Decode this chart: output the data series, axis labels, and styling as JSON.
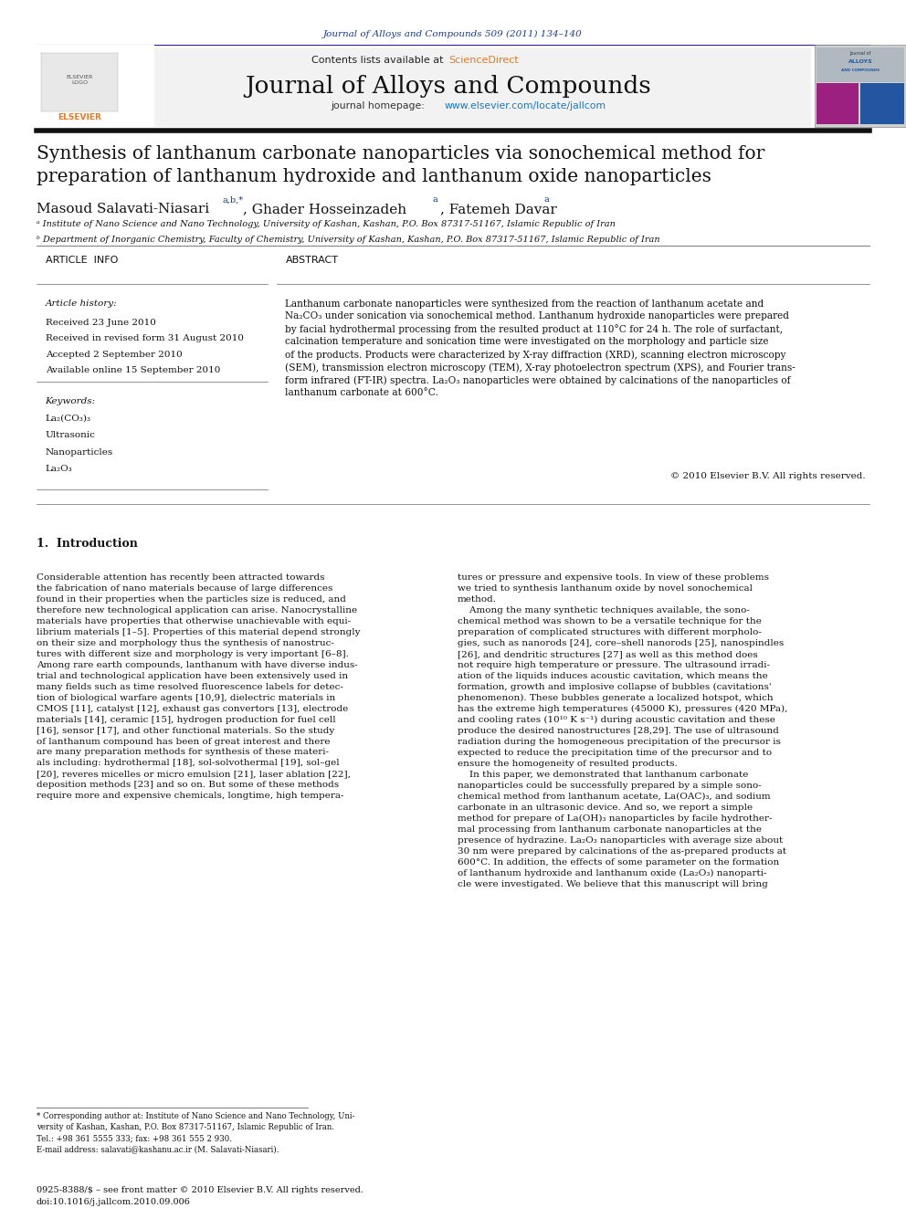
{
  "page_width": 9.92,
  "page_height": 13.23,
  "bg_color": "#ffffff",
  "journal_citation": "Journal of Alloys and Compounds 509 (2011) 134–140",
  "journal_citation_color": "#1a3a8c",
  "contents_text": "Contents lists available at ",
  "sciencedirect_text": "ScienceDirect",
  "sciencedirect_color": "#e87722",
  "journal_name": "Journal of Alloys and Compounds",
  "journal_homepage_prefix": "journal homepage: ",
  "journal_url": "www.elsevier.com/locate/jallcom",
  "journal_url_color": "#1a78c2",
  "paper_title": "Synthesis of lanthanum carbonate nanoparticles via sonochemical method for\npreparation of lanthanum hydroxide and lanthanum oxide nanoparticles",
  "affiliation_a": "ᵃ Institute of Nano Science and Nano Technology, University of Kashan, Kashan, P.O. Box 87317-51167, Islamic Republic of Iran",
  "affiliation_b": "ᵇ Department of Inorganic Chemistry, Faculty of Chemistry, University of Kashan, Kashan, P.O. Box 87317-51167, Islamic Republic of Iran",
  "article_info_title": "ARTICLE  INFO",
  "article_history_title": "Article history:",
  "received": "Received 23 June 2010",
  "revised": "Received in revised form 31 August 2010",
  "accepted": "Accepted 2 September 2010",
  "available": "Available online 15 September 2010",
  "keywords_title": "Keywords:",
  "keyword1": "La₂(CO₃)₃",
  "keyword2": "Ultrasonic",
  "keyword3": "Nanoparticles",
  "keyword4": "La₂O₃",
  "abstract_title": "ABSTRACT",
  "abstract_text": "Lanthanum carbonate nanoparticles were synthesized from the reaction of lanthanum acetate and\nNa₂CO₃ under sonication via sonochemical method. Lanthanum hydroxide nanoparticles were prepared\nby facial hydrothermal processing from the resulted product at 110°C for 24 h. The role of surfactant,\ncalcination temperature and sonication time were investigated on the morphology and particle size\nof the products. Products were characterized by X-ray diffraction (XRD), scanning electron microscopy\n(SEM), transmission electron microscopy (TEM), X-ray photoelectron spectrum (XPS), and Fourier trans-\nform infrared (FT-IR) spectra. La₂O₃ nanoparticles were obtained by calcinations of the nanoparticles of\nlanthanum carbonate at 600°C.",
  "copyright": "© 2010 Elsevier B.V. All rights reserved.",
  "intro_title": "1.  Introduction",
  "intro_col1": "Considerable attention has recently been attracted towards\nthe fabrication of nano materials because of large differences\nfound in their properties when the particles size is reduced, and\ntherefore new technological application can arise. Nanocrystalline\nmaterials have properties that otherwise unachievable with equi-\nlibrium materials [1–5]. Properties of this material depend strongly\non their size and morphology thus the synthesis of nanostruc-\ntures with different size and morphology is very important [6–8].\nAmong rare earth compounds, lanthanum with have diverse indus-\ntrial and technological application have been extensively used in\nmany fields such as time resolved fluorescence labels for detec-\ntion of biological warfare agents [10,9], dielectric materials in\nCMOS [11], catalyst [12], exhaust gas convertors [13], electrode\nmaterials [14], ceramic [15], hydrogen production for fuel cell\n[16], sensor [17], and other functional materials. So the study\nof lanthanum compound has been of great interest and there\nare many preparation methods for synthesis of these materi-\nals including: hydrothermal [18], sol-solvothermal [19], sol–gel\n[20], reveres micelles or micro emulsion [21], laser ablation [22],\ndeposition methods [23] and so on. But some of these methods\nrequire more and expensive chemicals, longtime, high tempera-",
  "intro_col2": "tures or pressure and expensive tools. In view of these problems\nwe tried to synthesis lanthanum oxide by novel sonochemical\nmethod.\n    Among the many synthetic techniques available, the sono-\nchemical method was shown to be a versatile technique for the\npreparation of complicated structures with different morpholo-\ngies, such as nanorods [24], core–shell nanorods [25], nanospindles\n[26], and dendritic structures [27] as well as this method does\nnot require high temperature or pressure. The ultrasound irradi-\nation of the liquids induces acoustic cavitation, which means the\nformation, growth and implosive collapse of bubbles (cavitations'\nphenomenon). These bubbles generate a localized hotspot, which\nhas the extreme high temperatures (45000 K), pressures (420 MPa),\nand cooling rates (10¹⁰ K s⁻¹) during acoustic cavitation and these\nproduce the desired nanostructures [28,29]. The use of ultrasound\nradiation during the homogeneous precipitation of the precursor is\nexpected to reduce the precipitation time of the precursor and to\nensure the homogeneity of resulted products.\n    In this paper, we demonstrated that lanthanum carbonate\nnanoparticles could be successfully prepared by a simple sono-\nchemical method from lanthanum acetate, La(OAC)₃, and sodium\ncarbonate in an ultrasonic device. And so, we report a simple\nmethod for prepare of La(OH)₃ nanoparticles by facile hydrother-\nmal processing from lanthanum carbonate nanoparticles at the\npresence of hydrazine. La₂O₃ nanoparticles with average size about\n30 nm were prepared by calcinations of the as-prepared products at\n600°C. In addition, the effects of some parameter on the formation\nof lanthanum hydroxide and lanthanum oxide (La₂O₃) nanoparti-\ncle were investigated. We believe that this manuscript will bring",
  "footnote_text": "* Corresponding author at: Institute of Nano Science and Nano Technology, Uni-\nversity of Kashan, Kashan, P.O. Box 87317-51167, Islamic Republic of Iran.\nTel.: +98 361 5555 333; fax: +98 361 555 2 930.\nE-mail address: salavati@kashanu.ac.ir (M. Salavati-Niasari).",
  "bottom_left": "0925-8388/$ – see front matter © 2010 Elsevier B.V. All rights reserved.\ndoi:10.1016/j.jallcom.2010.09.006"
}
